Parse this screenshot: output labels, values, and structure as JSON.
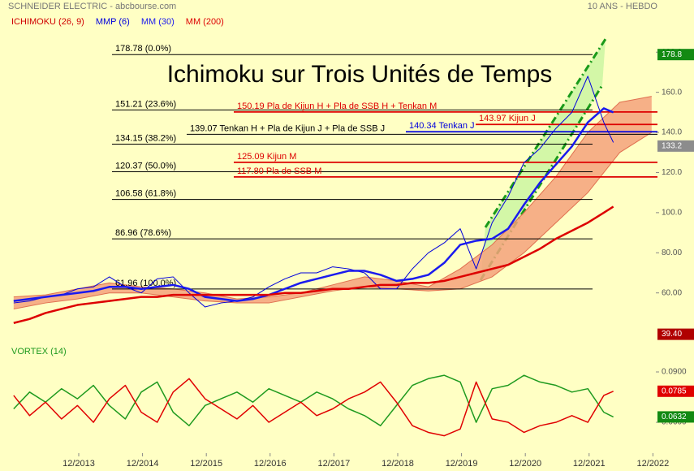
{
  "header": {
    "source": "SCHNEIDER ELECTRIC - abcbourse.com",
    "period": "10 ANS - HEBDO"
  },
  "chart_data": [
    {
      "type": "line",
      "title": "Ichimoku sur Trois Unités de Temps",
      "x": [
        2012.9,
        2013.15,
        2013.4,
        2013.65,
        2013.9,
        2014.15,
        2014.4,
        2014.65,
        2014.9,
        2015.15,
        2015.4,
        2015.65,
        2015.9,
        2016.15,
        2016.4,
        2016.65,
        2016.9,
        2017.15,
        2017.4,
        2017.65,
        2017.9,
        2018.15,
        2018.4,
        2018.65,
        2018.9,
        2019.15,
        2019.4,
        2019.65,
        2019.9,
        2020.15,
        2020.4,
        2020.65,
        2020.9,
        2021.15,
        2021.4,
        2021.65,
        2021.9,
        2022.15,
        2022.3
      ],
      "xlim": [
        2012.686,
        2023.564
      ],
      "xticks": [
        {
          "value": 2013.92,
          "label": "12/2013"
        },
        {
          "value": 2014.92,
          "label": "12/2014"
        },
        {
          "value": 2015.92,
          "label": "12/2015"
        },
        {
          "value": 2016.92,
          "label": "12/2016"
        },
        {
          "value": 2017.92,
          "label": "12/2017"
        },
        {
          "value": 2018.92,
          "label": "12/2018"
        },
        {
          "value": 2019.92,
          "label": "12/2019"
        },
        {
          "value": 2020.92,
          "label": "12/2020"
        },
        {
          "value": 2021.92,
          "label": "12/2021"
        },
        {
          "value": 2022.92,
          "label": "12/2022"
        }
      ],
      "ylim": [
        36,
        206
      ],
      "yticks": [
        {
          "value": 60,
          "label": "60.00"
        },
        {
          "value": 80,
          "label": "80.00"
        },
        {
          "value": 100,
          "label": "100.0"
        },
        {
          "value": 120,
          "label": "120.0"
        },
        {
          "value": 140,
          "label": "140.0"
        },
        {
          "value": 160,
          "label": "160.0"
        },
        {
          "value": 180,
          "label": "180.0"
        }
      ],
      "cloud": {
        "name": "ICHIMOKU (26, 9)",
        "color": "#f4a27c",
        "legend_color": "#d00000",
        "x": [
          2012.9,
          2013.4,
          2013.9,
          2014.4,
          2014.9,
          2015.4,
          2015.9,
          2016.4,
          2016.9,
          2017.4,
          2017.9,
          2018.4,
          2018.9,
          2019.4,
          2019.9,
          2020.4,
          2020.9,
          2021.4,
          2021.9,
          2022.4,
          2022.9
        ],
        "upper": [
          58,
          59,
          62,
          65,
          63,
          62,
          60,
          57,
          58,
          60,
          64,
          68,
          66,
          63,
          72,
          84,
          100,
          118,
          140,
          155,
          158
        ],
        "lower": [
          52,
          55,
          57,
          60,
          60,
          58,
          56,
          55,
          55,
          58,
          61,
          63,
          62,
          61,
          62,
          68,
          80,
          95,
          110,
          130,
          140
        ]
      },
      "series": [
        {
          "name": "MMP (6)",
          "color": "#0000dd",
          "width": 1,
          "values": [
            55,
            56,
            58,
            59,
            62,
            63,
            68,
            63,
            60,
            67,
            68,
            60,
            53,
            55,
            56,
            58,
            63,
            67,
            70,
            70,
            73,
            72,
            70,
            62,
            62,
            72,
            80,
            85,
            92,
            72,
            95,
            108,
            125,
            132,
            142,
            150,
            168,
            145,
            135
          ]
        },
        {
          "name": "MM (30)",
          "color": "#1a1aee",
          "width": 2.5,
          "values": [
            56,
            57,
            58,
            59,
            60,
            61,
            63,
            63,
            62,
            63,
            64,
            62,
            58,
            57,
            56,
            57,
            59,
            62,
            65,
            67,
            69,
            71,
            71,
            69,
            66,
            67,
            69,
            75,
            84,
            86,
            87,
            92,
            104,
            115,
            124,
            133,
            145,
            152,
            150
          ]
        },
        {
          "name": "MM (200)",
          "color": "#dd0000",
          "width": 2.5,
          "values": [
            45,
            47,
            50,
            52,
            54,
            55,
            56,
            57,
            58,
            58,
            59,
            59,
            59,
            59,
            59,
            59,
            59,
            60,
            60,
            61,
            62,
            62,
            63,
            64,
            64,
            65,
            65,
            66,
            68,
            70,
            72,
            74,
            78,
            82,
            87,
            91,
            95,
            100,
            103
          ]
        }
      ],
      "levels": [
        {
          "value": 178.78,
          "label": "178.78  (0.0%)",
          "color": "#000000"
        },
        {
          "value": 151.21,
          "label": "151.21  (23.6%)",
          "color": "#000000"
        },
        {
          "value": 134.15,
          "label": "134.15  (38.2%)",
          "color": "#000000"
        },
        {
          "value": 120.37,
          "label": "120.37  (50.0%)",
          "color": "#000000"
        },
        {
          "value": 106.58,
          "label": "106.58  (61.8%)",
          "color": "#000000"
        },
        {
          "value": 86.96,
          "label": "86.96  (78.6%)",
          "color": "#000000"
        },
        {
          "value": 61.96,
          "label": "61.96  (100.0%)",
          "color": "#000000"
        },
        {
          "value": 150.19,
          "label": "150.19    Pla de Kijun H + Pla de SSB H + Tenkan M",
          "color": "#dd0000"
        },
        {
          "value": 143.97,
          "label": "143.97  Kijun J",
          "color": "#dd0000"
        },
        {
          "value": 139.07,
          "label": "139.07 Tenkan H + Pla de Kijun J + Pla de SSB J",
          "color": "#000000"
        },
        {
          "value": 140.34,
          "label": "140.34  Tenkan J",
          "color": "#0000dd"
        },
        {
          "value": 125.09,
          "label": "125.09    Kijun M",
          "color": "#dd0000"
        },
        {
          "value": 117.8,
          "label": "117.80    Pla de SSB M",
          "color": "#dd0000"
        }
      ],
      "badges": [
        {
          "value": 178.8,
          "label": "178.8",
          "color": "#138a13"
        },
        {
          "value": 133.2,
          "label": "133.2",
          "color": "#8c8c8c"
        },
        {
          "value": 39.4,
          "label": "39.40",
          "color": "#b00000"
        }
      ]
    },
    {
      "type": "line",
      "title": "VORTEX (14)",
      "x": [
        2012.9,
        2013.15,
        2013.4,
        2013.65,
        2013.9,
        2014.15,
        2014.4,
        2014.65,
        2014.9,
        2015.15,
        2015.4,
        2015.65,
        2015.9,
        2016.15,
        2016.4,
        2016.65,
        2016.9,
        2017.15,
        2017.4,
        2017.65,
        2017.9,
        2018.15,
        2018.4,
        2018.65,
        2018.9,
        2019.15,
        2019.4,
        2019.65,
        2019.9,
        2020.15,
        2020.4,
        2020.65,
        2020.9,
        2021.15,
        2021.4,
        2021.65,
        2021.9,
        2022.15,
        2022.3
      ],
      "ylim": [
        0.0431,
        0.0987
      ],
      "yticks": [
        {
          "value": 0.09,
          "label": "0.0900"
        },
        {
          "value": 0.06,
          "label": "0.0600"
        }
      ],
      "series": [
        {
          "color": "#1f9a1f",
          "values": [
            0.068,
            0.078,
            0.072,
            0.08,
            0.074,
            0.082,
            0.07,
            0.062,
            0.078,
            0.084,
            0.066,
            0.058,
            0.07,
            0.074,
            0.078,
            0.072,
            0.08,
            0.076,
            0.072,
            0.078,
            0.074,
            0.068,
            0.064,
            0.058,
            0.07,
            0.082,
            0.086,
            0.088,
            0.084,
            0.06,
            0.08,
            0.082,
            0.088,
            0.084,
            0.082,
            0.078,
            0.08,
            0.066,
            0.0632
          ]
        },
        {
          "color": "#e00000",
          "values": [
            0.076,
            0.064,
            0.072,
            0.062,
            0.07,
            0.06,
            0.074,
            0.082,
            0.066,
            0.06,
            0.078,
            0.086,
            0.074,
            0.068,
            0.062,
            0.07,
            0.06,
            0.066,
            0.072,
            0.064,
            0.068,
            0.074,
            0.078,
            0.084,
            0.072,
            0.058,
            0.054,
            0.052,
            0.056,
            0.084,
            0.062,
            0.06,
            0.054,
            0.058,
            0.06,
            0.064,
            0.06,
            0.076,
            0.0785
          ]
        }
      ],
      "badges": [
        {
          "value": 0.0785,
          "label": "0.0785",
          "color": "#e00000"
        },
        {
          "value": 0.0632,
          "label": "0.0632",
          "color": "#138a13"
        }
      ]
    }
  ]
}
